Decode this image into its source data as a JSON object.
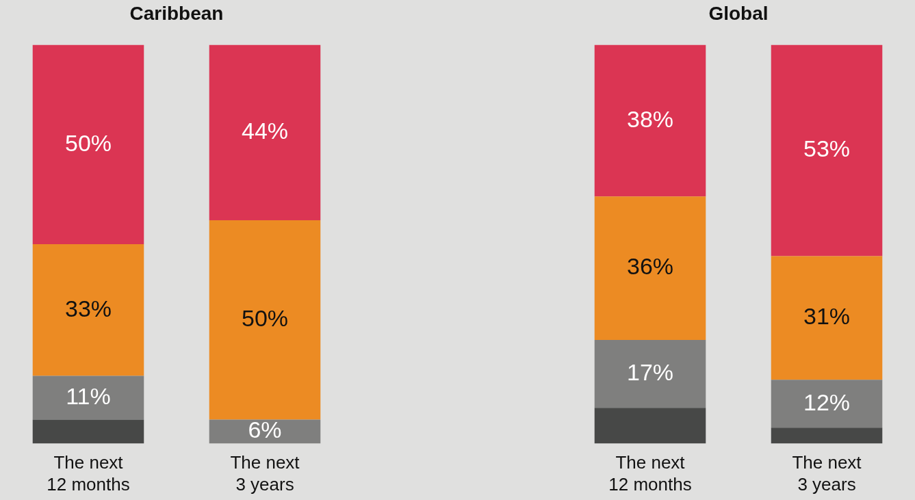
{
  "chart_data": [
    {
      "type": "bar",
      "title": "Caribbean",
      "categories": [
        "The next 12 months",
        "The next 3 years"
      ],
      "stacked": true,
      "ylim": [
        0,
        100
      ],
      "tick_labels": "x",
      "grid": false,
      "legend": false,
      "series": [
        {
          "color": "#474847",
          "values": [
            6,
            0
          ],
          "value_labels": [
            null,
            null
          ]
        },
        {
          "color": "#7f7f7e",
          "values": [
            11,
            6
          ],
          "value_labels": [
            "11%",
            "6%"
          ]
        },
        {
          "color": "#ec8b23",
          "values": [
            33,
            50
          ],
          "value_labels": [
            "33%",
            "50%"
          ]
        },
        {
          "color": "#db3553",
          "values": [
            50,
            44
          ],
          "value_labels": [
            "50%",
            "44%"
          ]
        }
      ]
    },
    {
      "type": "bar",
      "title": "Global",
      "categories": [
        "The next 12 months",
        "The next 3 years"
      ],
      "stacked": true,
      "ylim": [
        0,
        100
      ],
      "tick_labels": "x",
      "grid": false,
      "legend": false,
      "series": [
        {
          "color": "#474847",
          "values": [
            9,
            4
          ],
          "value_labels": [
            null,
            null
          ]
        },
        {
          "color": "#7f7f7e",
          "values": [
            17,
            12
          ],
          "value_labels": [
            "17%",
            "12%"
          ]
        },
        {
          "color": "#ec8b23",
          "values": [
            36,
            31
          ],
          "value_labels": [
            "36%",
            "31%"
          ]
        },
        {
          "color": "#db3553",
          "values": [
            38,
            53
          ],
          "value_labels": [
            "38%",
            "53%"
          ]
        }
      ]
    }
  ]
}
